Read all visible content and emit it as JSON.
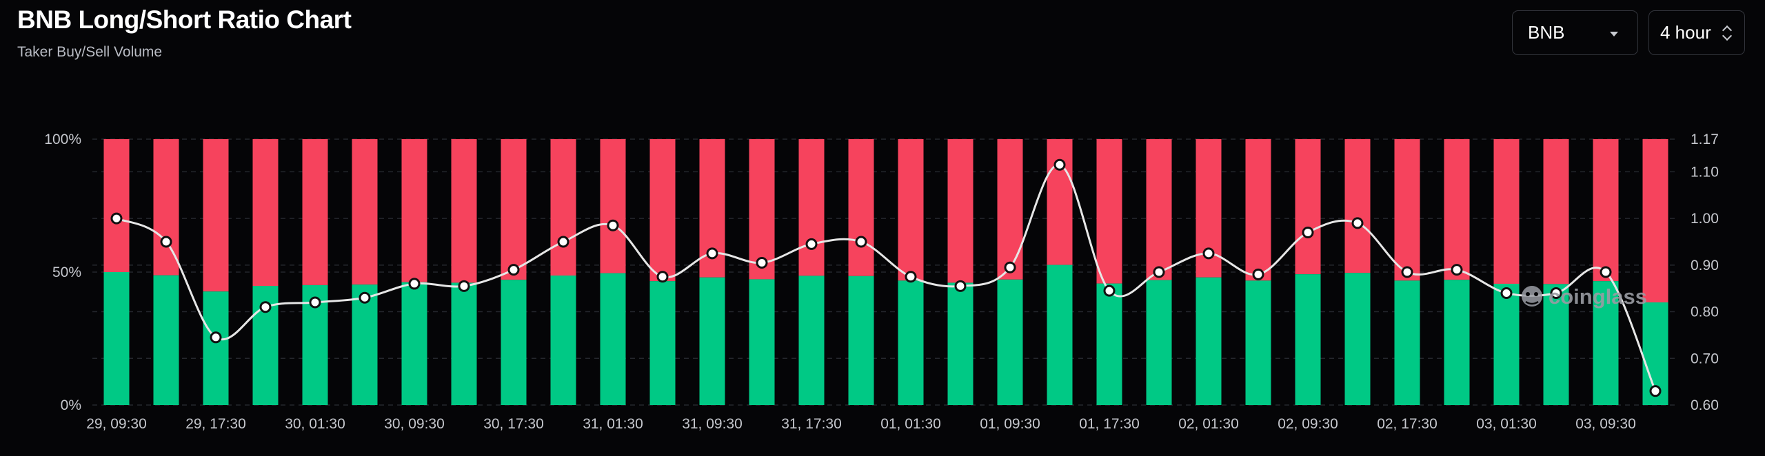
{
  "header": {
    "title": "BNB Long/Short Ratio Chart",
    "subtitle": "Taker Buy/Sell Volume"
  },
  "controls": {
    "coin_select": "BNB",
    "interval_select": "4 hour"
  },
  "watermark": "coinglass",
  "colors": {
    "long": "#00c985",
    "short": "#f6435d",
    "ratio_line": "#e6e6e6",
    "background": "#050507"
  },
  "chart_data": {
    "type": "bar",
    "stacked": true,
    "title": "",
    "x_tick_labels": [
      "29, 09:30",
      "29, 17:30",
      "30, 01:30",
      "30, 09:30",
      "30, 17:30",
      "31, 01:30",
      "31, 09:30",
      "31, 17:30",
      "01, 01:30",
      "01, 09:30",
      "01, 17:30",
      "02, 01:30",
      "02, 09:30",
      "02, 17:30",
      "03, 01:30",
      "03, 09:30"
    ],
    "left_axis": {
      "ticks": [
        "0%",
        "50%",
        "100%"
      ],
      "range": [
        0,
        100
      ]
    },
    "right_axis": {
      "ticks": [
        "0.60",
        "0.70",
        "0.80",
        "0.90",
        "1.00",
        "1.10",
        "1.17"
      ],
      "range": [
        0.6,
        1.17
      ]
    },
    "series": [
      {
        "type": "bar",
        "axis": "left",
        "values": [
          50.0,
          48.8,
          42.7,
          44.8,
          45.1,
          45.3,
          46.2,
          46.0,
          47.1,
          48.7,
          49.6,
          46.6,
          48.0,
          47.3,
          48.6,
          48.5,
          46.8,
          46.0,
          47.2,
          52.7,
          45.7,
          47.0,
          48.0,
          46.8,
          49.2,
          49.7,
          46.8,
          47.1,
          45.6,
          45.5,
          46.6,
          38.6
        ]
      },
      {
        "type": "bar",
        "axis": "left",
        "values": [
          50.0,
          51.2,
          57.3,
          55.2,
          54.9,
          54.7,
          53.8,
          54.0,
          52.9,
          51.3,
          50.4,
          53.4,
          52.0,
          52.7,
          51.4,
          51.5,
          53.2,
          54.0,
          52.8,
          47.3,
          54.3,
          53.0,
          52.0,
          53.2,
          50.8,
          50.3,
          53.2,
          52.9,
          54.4,
          54.5,
          53.4,
          61.4
        ]
      },
      {
        "type": "line",
        "axis": "right",
        "values": [
          1.0,
          0.95,
          0.745,
          0.81,
          0.82,
          0.83,
          0.86,
          0.855,
          0.89,
          0.95,
          0.985,
          0.875,
          0.925,
          0.905,
          0.945,
          0.95,
          0.875,
          0.855,
          0.895,
          1.115,
          0.845,
          0.885,
          0.925,
          0.88,
          0.97,
          0.99,
          0.885,
          0.89,
          0.84,
          0.84,
          0.885,
          0.63
        ]
      }
    ]
  }
}
